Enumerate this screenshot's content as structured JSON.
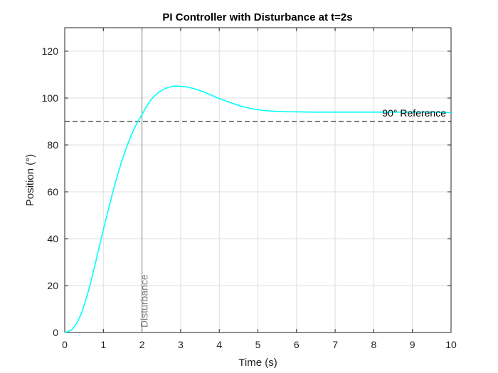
{
  "chart_data": {
    "type": "line",
    "title": "PI Controller with Disturbance at t=2s",
    "xlabel": "Time (s)",
    "ylabel": "Position (°)",
    "xlim": [
      0,
      10
    ],
    "ylim": [
      0,
      130
    ],
    "x_ticks": [
      0,
      1,
      2,
      3,
      4,
      5,
      6,
      7,
      8,
      9,
      10
    ],
    "y_ticks": [
      0,
      20,
      40,
      60,
      80,
      100,
      120
    ],
    "grid": true,
    "series": [
      {
        "color": "#00ffff",
        "x": [
          0,
          0.2,
          0.4,
          0.6,
          0.8,
          1.0,
          1.2,
          1.4,
          1.6,
          1.8,
          2.0,
          2.2,
          2.4,
          2.6,
          2.8,
          3.0,
          3.2,
          3.5,
          3.8,
          4.0,
          4.3,
          4.6,
          5.0,
          5.5,
          6.0,
          6.5,
          7.0,
          7.5,
          8.0,
          8.5,
          9.0,
          9.5,
          10.0
        ],
        "y": [
          0,
          1.5,
          7,
          17,
          30,
          44,
          57,
          69,
          79,
          87,
          93,
          98.5,
          102,
          104,
          105,
          105,
          104.6,
          103.2,
          101.2,
          99.8,
          98,
          96.4,
          95,
          94.3,
          94.1,
          94,
          94,
          94,
          94,
          94,
          94,
          94,
          93.8
        ]
      }
    ],
    "reference_line": {
      "y": 90,
      "label": "90° Reference",
      "style": "dashed",
      "color": "#000000"
    },
    "disturbance_line": {
      "x": 2,
      "label": "Disturbance",
      "color": "#808080"
    }
  }
}
